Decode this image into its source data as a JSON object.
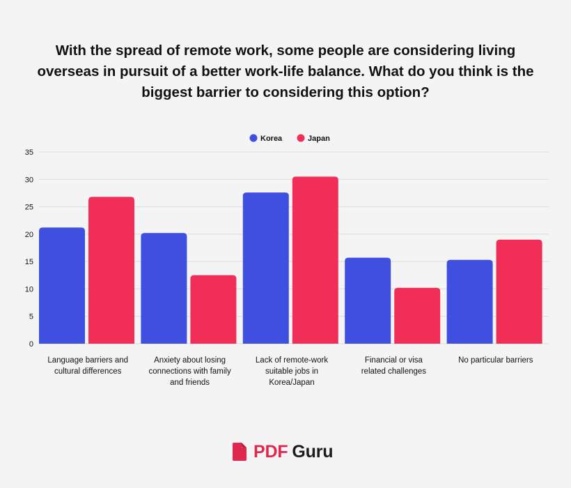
{
  "title": "With the spread of remote work, some people are considering living overseas in pursuit of a better work-life balance. What do you think is the biggest barrier to considering this option?",
  "brand": {
    "pdf": "PDF",
    "guru": "Guru",
    "icon": "pdf-document-icon"
  },
  "colors": {
    "korea": "#3f4fe0",
    "japan": "#f12e57",
    "grid": "#dcdcdc",
    "background": "#f4f4f4",
    "text": "#111111"
  },
  "chart_data": {
    "type": "bar",
    "title": "With the spread of remote work, some people are considering living overseas in pursuit of a better work-life balance. What do you think is the biggest barrier to considering this option?",
    "xlabel": "",
    "ylabel": "",
    "ylim": [
      0,
      35
    ],
    "yticks": [
      0,
      5,
      10,
      15,
      20,
      25,
      30,
      35
    ],
    "grid": true,
    "legend_position": "top-center",
    "categories": [
      [
        "Language barriers and",
        "cultural differences"
      ],
      [
        "Anxiety about losing",
        "connections with family",
        "and friends"
      ],
      [
        "Lack of remote-work",
        "suitable jobs in",
        "Korea/Japan"
      ],
      [
        "Financial or visa",
        "related challenges"
      ],
      [
        "No particular barriers"
      ]
    ],
    "series": [
      {
        "name": "Korea",
        "color": "#3f4fe0",
        "values": [
          21.2,
          20.2,
          27.6,
          15.7,
          15.3
        ]
      },
      {
        "name": "Japan",
        "color": "#f12e57",
        "values": [
          26.8,
          12.5,
          30.5,
          10.2,
          19.0
        ]
      }
    ]
  }
}
